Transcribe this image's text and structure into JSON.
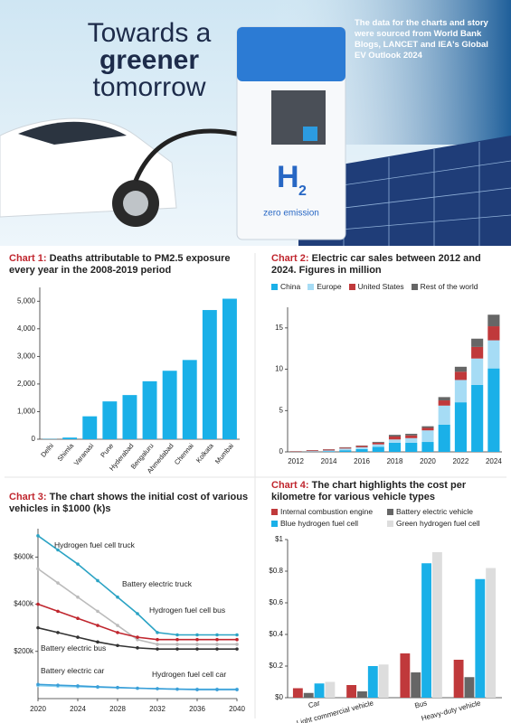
{
  "header": {
    "title_lines": [
      "Towards a",
      "greener",
      "tomorrow"
    ],
    "note": "The data for the charts and story were sourced from World Bank Blogs, LANCET and IEA's Global EV Outlook 2024",
    "station_mark": [
      "H",
      "2"
    ],
    "station_text": "zero emission"
  },
  "chart_data": [
    {
      "type": "bar",
      "label": "Chart 1:",
      "title": "Deaths attributable to PM2.5 exposure every year in the 2008-2019 period",
      "categories": [
        "Delhi",
        "Shimla",
        "Varanasi",
        "Pune",
        "Hyderabad",
        "Bengaluru",
        "Ahmedabad",
        "Chennai",
        "Kolkata",
        "Mumbai"
      ],
      "values": [
        10,
        60,
        830,
        1370,
        1600,
        2100,
        2480,
        2870,
        4680,
        5090
      ],
      "color": "#1ab0e8",
      "ylim": [
        0,
        5500
      ],
      "yticks": [
        0,
        {
          "value": 1000,
          "label": "1,000"
        },
        {
          "value": 2000,
          "label": "2,000"
        },
        {
          "value": 3000,
          "label": "3,000"
        },
        {
          "value": 4000,
          "label": "4,000"
        },
        {
          "value": 5000,
          "label": "5,000"
        }
      ]
    },
    {
      "type": "stacked_bar",
      "label": "Chart 2:",
      "title": "Electric car sales between 2012 and 2024. Figures in million",
      "categories": [
        "2012",
        null,
        "2014",
        null,
        "2016",
        null,
        "2018",
        null,
        "2020",
        null,
        "2022",
        null,
        "2024"
      ],
      "series": [
        {
          "name": "China",
          "color": "#1ab0e8",
          "values": [
            0.01,
            0.02,
            0.07,
            0.2,
            0.34,
            0.6,
            1.1,
            1.1,
            1.2,
            3.3,
            6.0,
            8.1,
            10.1
          ]
        },
        {
          "name": "Europe",
          "color": "#a6dcf5",
          "values": [
            0.01,
            0.07,
            0.1,
            0.2,
            0.22,
            0.31,
            0.4,
            0.56,
            1.4,
            2.3,
            2.7,
            3.2,
            3.4
          ]
        },
        {
          "name": "United States",
          "color": "#c0393b",
          "values": [
            0.05,
            0.1,
            0.12,
            0.11,
            0.16,
            0.2,
            0.36,
            0.33,
            0.3,
            0.63,
            1.0,
            1.4,
            1.7
          ]
        },
        {
          "name": "Rest of the world",
          "color": "#666666",
          "values": [
            0.01,
            0.02,
            0.03,
            0.05,
            0.05,
            0.1,
            0.2,
            0.2,
            0.2,
            0.4,
            0.6,
            1.0,
            1.4
          ]
        }
      ],
      "ylim": [
        0,
        17.5
      ],
      "yticks": [
        0,
        5,
        10,
        15
      ]
    },
    {
      "type": "line",
      "label": "Chart 3:",
      "title": "The chart shows the initial cost of various vehicles in $1000 (k)s",
      "x": [
        2020,
        2022,
        2024,
        2026,
        2028,
        2030,
        2032,
        2034,
        2036,
        2038,
        2040
      ],
      "series": [
        {
          "name": "Hydrogen fuel cell truck",
          "color": "#2ba3c4",
          "values": [
            690,
            630,
            570,
            500,
            430,
            360,
            280,
            270,
            270,
            270,
            270
          ]
        },
        {
          "name": "Battery electric truck",
          "color": "#bbbbbb",
          "values": [
            550,
            490,
            430,
            370,
            310,
            250,
            230,
            230,
            230,
            230,
            230
          ]
        },
        {
          "name": "Hydrogen fuel cell bus",
          "color": "#c0262e",
          "values": [
            400,
            370,
            340,
            310,
            280,
            260,
            250,
            250,
            250,
            250,
            250
          ]
        },
        {
          "name": "Battery electric bus",
          "color": "#333333",
          "values": [
            300,
            280,
            260,
            240,
            225,
            215,
            210,
            210,
            210,
            210,
            210
          ]
        },
        {
          "name": "Battery electric car",
          "color": "#8fd3f0",
          "values": [
            55,
            52,
            50,
            48,
            46,
            44,
            42,
            40,
            40,
            40,
            40
          ]
        },
        {
          "name": "Hydrogen fuel cell car",
          "color": "#3a9fd8",
          "values": [
            60,
            57,
            54,
            50,
            47,
            44,
            42,
            40,
            38,
            38,
            38
          ]
        }
      ],
      "xlim": [
        2020,
        2040
      ],
      "xticks": [
        2020,
        2024,
        2028,
        2032,
        2036,
        2040
      ],
      "ylim": [
        0,
        720
      ],
      "yticks": [
        {
          "value": 200,
          "label": "$200k"
        },
        {
          "value": 400,
          "label": "$400k"
        },
        {
          "value": 600,
          "label": "$600k"
        }
      ]
    },
    {
      "type": "grouped_bar",
      "label": "Chart 4:",
      "title": "The chart highlights the cost per kilometre for various vehicle types",
      "categories": [
        "Car",
        "Light commercial vehicle",
        "Bus",
        "Heavy-duty vehicle"
      ],
      "series": [
        {
          "name": "Internal combustion engine",
          "color": "#c0393b",
          "values": [
            0.06,
            0.08,
            0.28,
            0.24
          ]
        },
        {
          "name": "Battery electric vehicle",
          "color": "#666666",
          "values": [
            0.03,
            0.04,
            0.16,
            0.13
          ]
        },
        {
          "name": "Blue hydrogen fuel cell",
          "color": "#1ab0e8",
          "values": [
            0.09,
            0.2,
            0.85,
            0.75
          ]
        },
        {
          "name": "Green hydrogen fuel cell",
          "color": "#dddddd",
          "values": [
            0.1,
            0.21,
            0.92,
            0.82
          ]
        }
      ],
      "ylim": [
        0,
        1
      ],
      "yticks": [
        {
          "value": 0,
          "label": "$0"
        },
        {
          "value": 0.2,
          "label": "$0.2"
        },
        {
          "value": 0.4,
          "label": "$0.4"
        },
        {
          "value": 0.6,
          "label": "$0.6"
        },
        {
          "value": 0.8,
          "label": "$0.8"
        },
        {
          "value": 1,
          "label": "$1"
        }
      ]
    }
  ]
}
